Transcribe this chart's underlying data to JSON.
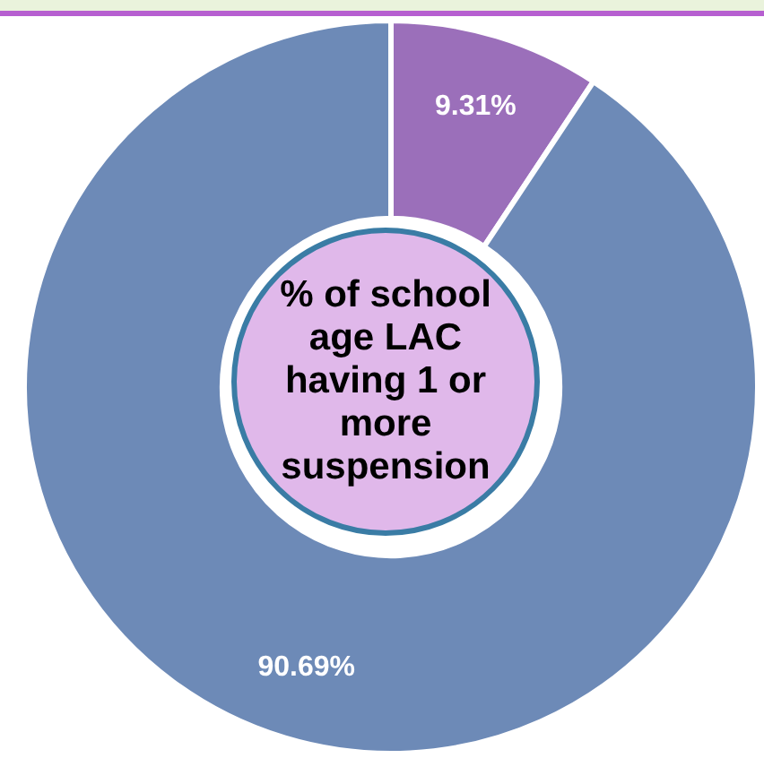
{
  "chart_data": {
    "type": "donut",
    "title": "% of school age LAC having 1 or more suspension",
    "categories": [
      null,
      null
    ],
    "values": [
      9.31,
      90.69
    ],
    "colors": [
      "#9b6fba",
      "#6d8ab7"
    ],
    "value_labels": [
      "9.31%",
      "90.69%"
    ],
    "legend": false
  }
}
